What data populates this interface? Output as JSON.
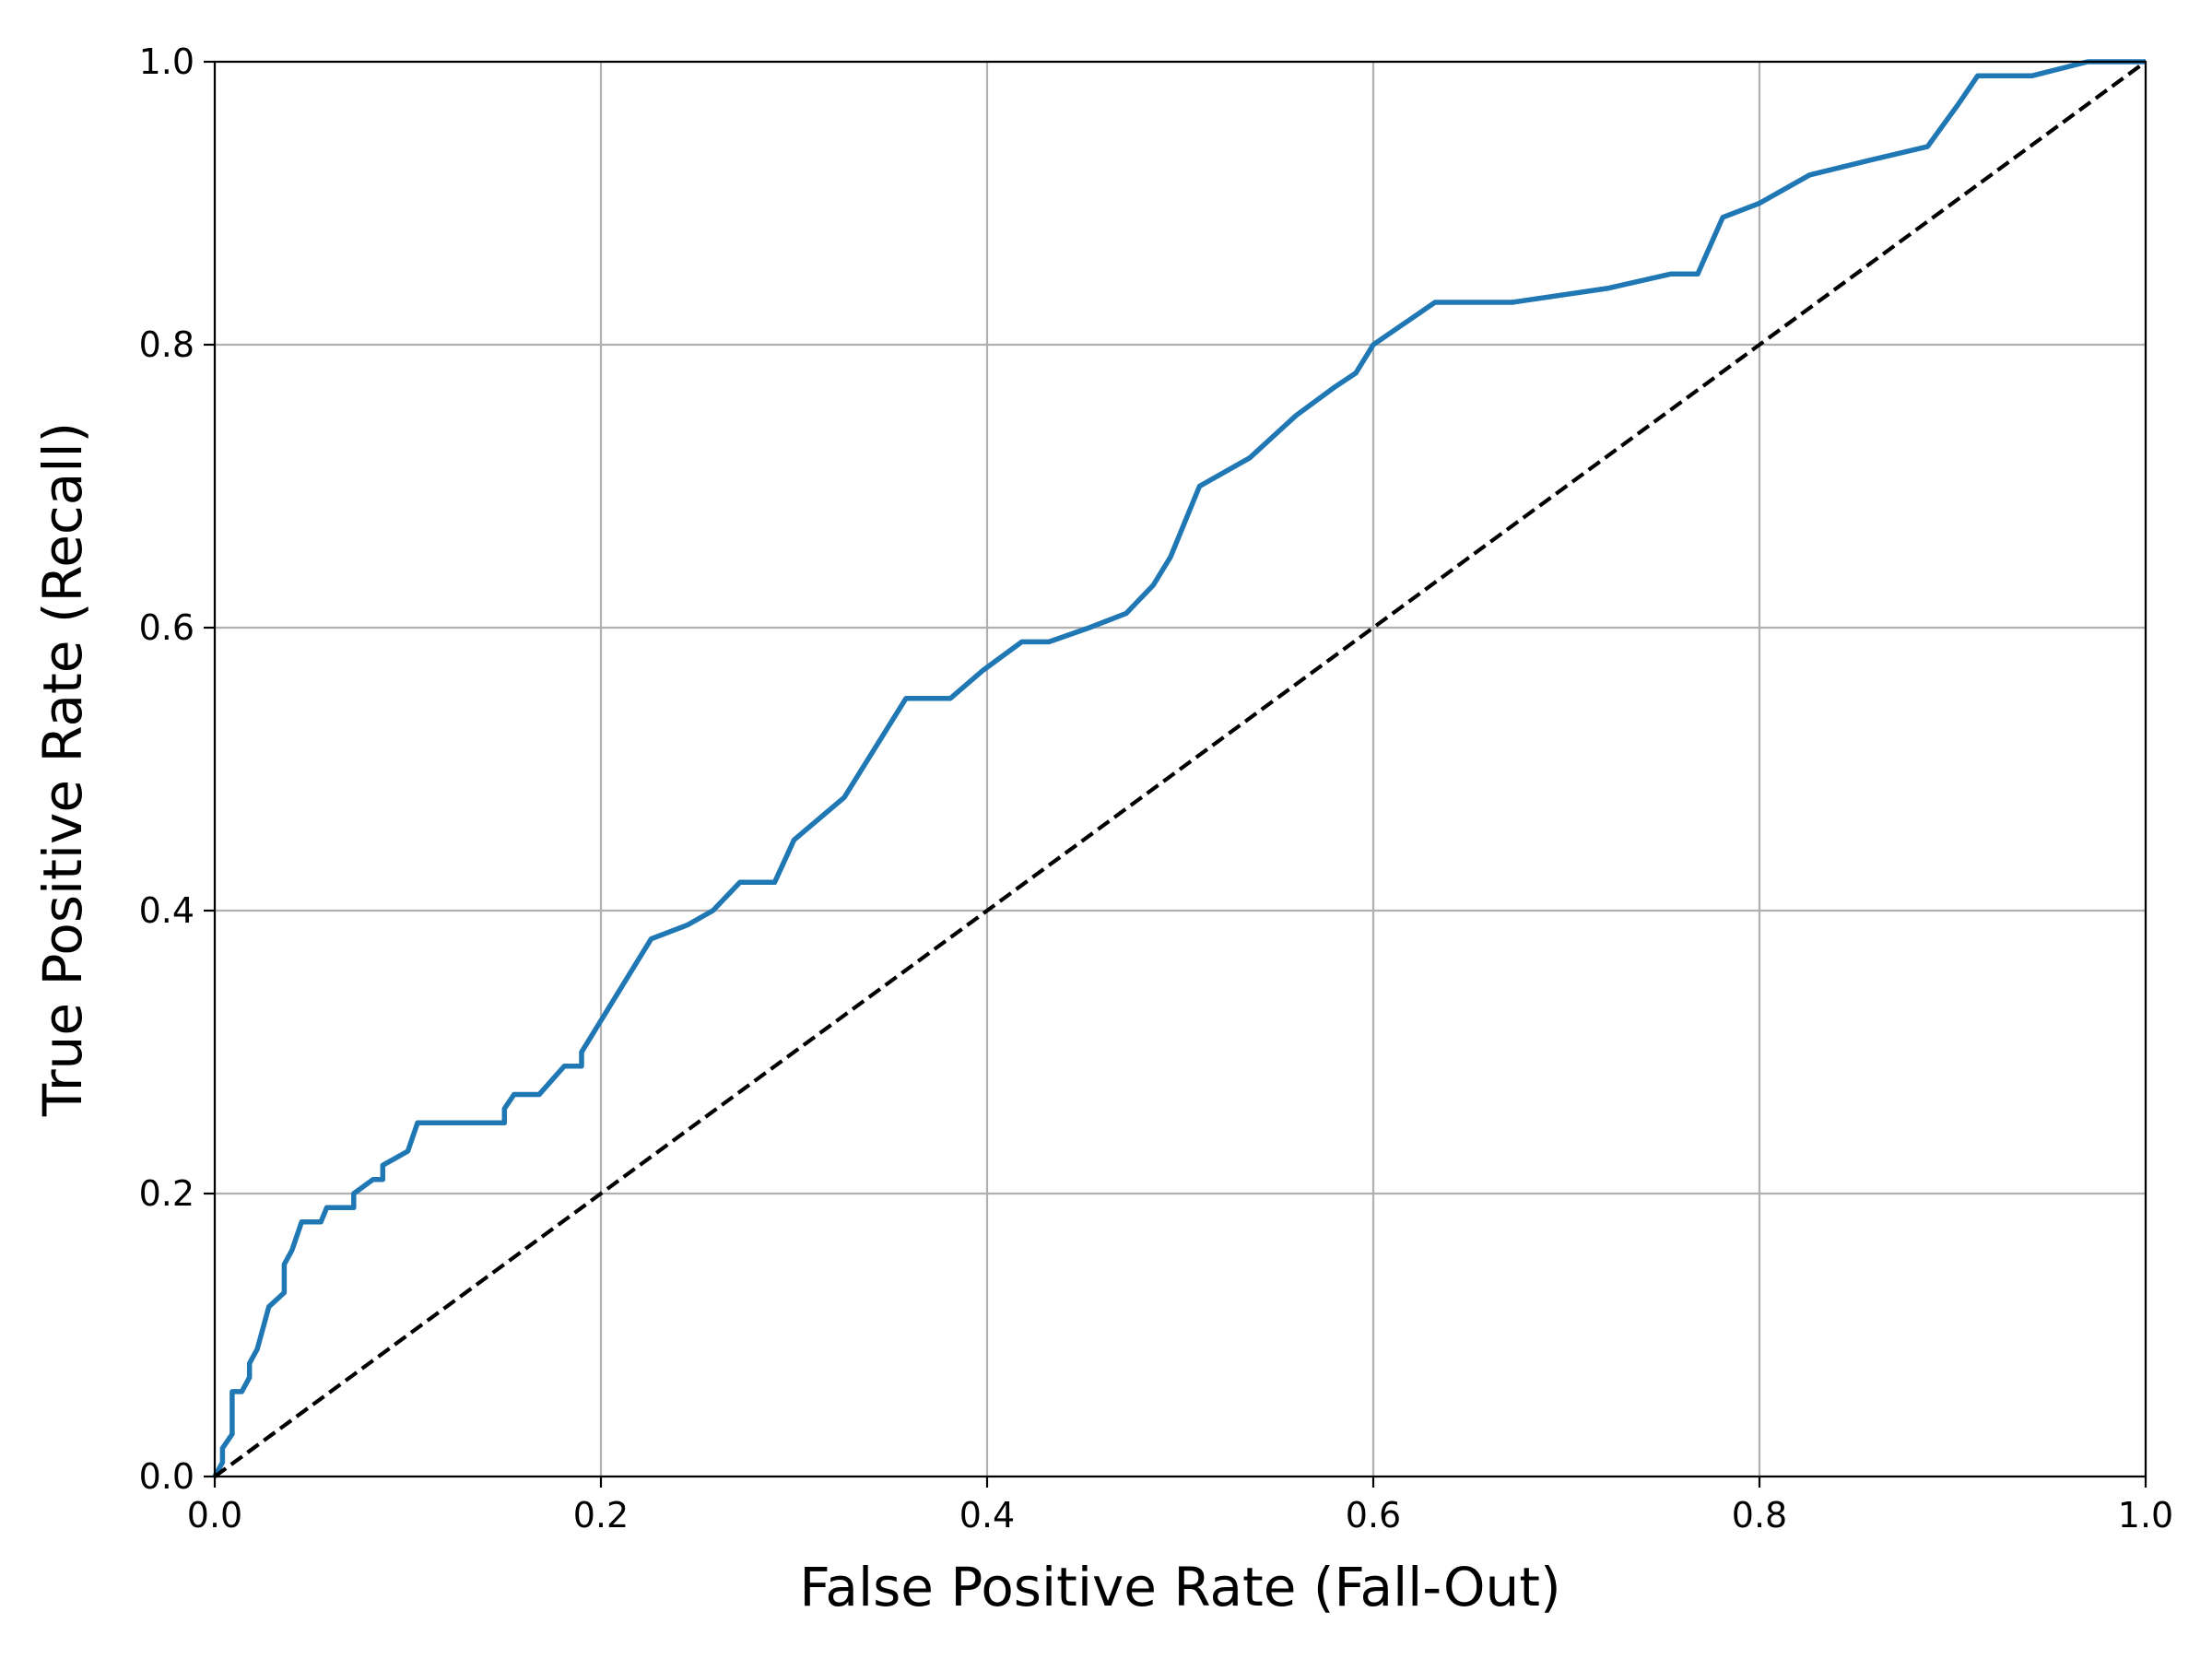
{
  "chart_data": {
    "type": "line",
    "title": "",
    "xlabel": "False Positive Rate (Fall-Out)",
    "ylabel": "True Positive Rate (Recall)",
    "xlim": [
      0,
      1
    ],
    "ylim": [
      0,
      1
    ],
    "grid": true,
    "x_ticks": [
      0.0,
      0.2,
      0.4,
      0.6,
      0.8,
      1.0
    ],
    "y_ticks": [
      0.0,
      0.2,
      0.4,
      0.6,
      0.8,
      1.0
    ],
    "x_tick_labels": [
      "0.0",
      "0.2",
      "0.4",
      "0.6",
      "0.8",
      "1.0"
    ],
    "y_tick_labels": [
      "0.0",
      "0.2",
      "0.4",
      "0.6",
      "0.8",
      "1.0"
    ],
    "series": [
      {
        "color": "#1f77b4",
        "style": "solid",
        "points": [
          [
            0.0,
            0.0
          ],
          [
            0.004,
            0.01
          ],
          [
            0.004,
            0.02
          ],
          [
            0.009,
            0.03
          ],
          [
            0.009,
            0.06
          ],
          [
            0.014,
            0.06
          ],
          [
            0.018,
            0.07
          ],
          [
            0.018,
            0.08
          ],
          [
            0.022,
            0.09
          ],
          [
            0.026,
            0.11
          ],
          [
            0.028,
            0.12
          ],
          [
            0.036,
            0.13
          ],
          [
            0.036,
            0.15
          ],
          [
            0.04,
            0.16
          ],
          [
            0.045,
            0.18
          ],
          [
            0.055,
            0.18
          ],
          [
            0.058,
            0.19
          ],
          [
            0.072,
            0.19
          ],
          [
            0.072,
            0.2
          ],
          [
            0.082,
            0.21
          ],
          [
            0.087,
            0.21
          ],
          [
            0.087,
            0.22
          ],
          [
            0.1,
            0.23
          ],
          [
            0.105,
            0.25
          ],
          [
            0.15,
            0.25
          ],
          [
            0.15,
            0.26
          ],
          [
            0.155,
            0.27
          ],
          [
            0.168,
            0.27
          ],
          [
            0.181,
            0.29
          ],
          [
            0.19,
            0.29
          ],
          [
            0.19,
            0.3
          ],
          [
            0.226,
            0.38
          ],
          [
            0.245,
            0.39
          ],
          [
            0.258,
            0.4
          ],
          [
            0.272,
            0.42
          ],
          [
            0.29,
            0.42
          ],
          [
            0.3,
            0.45
          ],
          [
            0.326,
            0.48
          ],
          [
            0.358,
            0.55
          ],
          [
            0.381,
            0.55
          ],
          [
            0.398,
            0.57
          ],
          [
            0.418,
            0.59
          ],
          [
            0.432,
            0.59
          ],
          [
            0.453,
            0.6
          ],
          [
            0.472,
            0.61
          ],
          [
            0.486,
            0.63
          ],
          [
            0.495,
            0.65
          ],
          [
            0.51,
            0.7
          ],
          [
            0.536,
            0.72
          ],
          [
            0.56,
            0.75
          ],
          [
            0.58,
            0.77
          ],
          [
            0.591,
            0.78
          ],
          [
            0.6,
            0.8
          ],
          [
            0.632,
            0.83
          ],
          [
            0.672,
            0.83
          ],
          [
            0.722,
            0.84
          ],
          [
            0.754,
            0.85
          ],
          [
            0.768,
            0.85
          ],
          [
            0.781,
            0.89
          ],
          [
            0.8,
            0.9
          ],
          [
            0.826,
            0.92
          ],
          [
            0.856,
            0.93
          ],
          [
            0.887,
            0.94
          ],
          [
            0.903,
            0.97
          ],
          [
            0.913,
            0.99
          ],
          [
            0.941,
            0.99
          ],
          [
            0.97,
            1.0
          ],
          [
            1.0,
            1.0
          ]
        ]
      },
      {
        "color": "#000000",
        "style": "dashed",
        "points": [
          [
            0,
            0
          ],
          [
            1,
            1
          ]
        ]
      }
    ]
  }
}
